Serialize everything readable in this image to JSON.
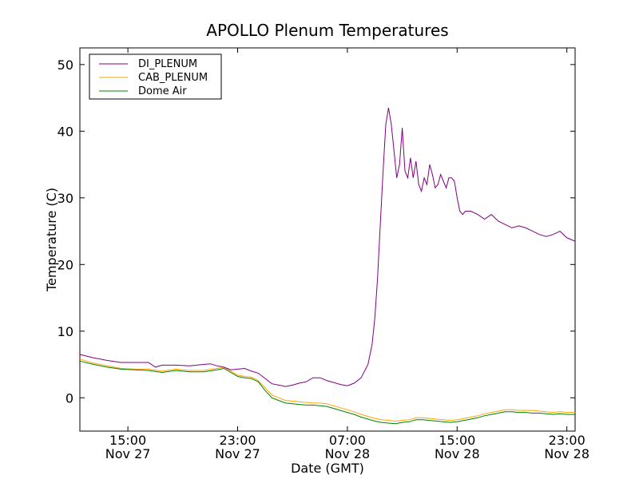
{
  "chart_data": {
    "type": "line",
    "title": "APOLLO Plenum Temperatures",
    "xlabel": "Date (GMT)",
    "ylabel": "Temperature (C)",
    "xlim": [
      11.5,
      47.6
    ],
    "ylim": [
      -5,
      52.5
    ],
    "x_units": "hours since Nov 27 00:00 GMT",
    "x_ticks": [
      {
        "value": 15,
        "line1": "15:00",
        "line2": "Nov 27"
      },
      {
        "value": 23,
        "line1": "23:00",
        "line2": "Nov 27"
      },
      {
        "value": 31,
        "line1": "07:00",
        "line2": "Nov 28"
      },
      {
        "value": 39,
        "line1": "15:00",
        "line2": "Nov 28"
      },
      {
        "value": 47,
        "line1": "23:00",
        "line2": "Nov 28"
      }
    ],
    "y_ticks": [
      0,
      10,
      20,
      30,
      40,
      50
    ],
    "grid": false,
    "legend_position": "top-left",
    "series": [
      {
        "name": "DI_PLENUM",
        "color": "#800080",
        "x": [
          11.5,
          12.5,
          13.5,
          14.5,
          15.5,
          16.5,
          17.0,
          17.5,
          18.5,
          19.5,
          20.5,
          21.0,
          21.5,
          22.0,
          22.5,
          23.0,
          23.5,
          24.0,
          24.5,
          25.0,
          25.5,
          26.0,
          26.5,
          27.0,
          27.5,
          28.0,
          28.5,
          29.0,
          29.5,
          30.0,
          30.5,
          31.0,
          31.5,
          32.0,
          32.5,
          32.8,
          33.0,
          33.2,
          33.4,
          33.6,
          33.8,
          34.0,
          34.2,
          34.4,
          34.6,
          34.8,
          35.0,
          35.2,
          35.4,
          35.6,
          35.8,
          36.0,
          36.2,
          36.4,
          36.6,
          36.8,
          37.0,
          37.2,
          37.4,
          37.6,
          37.8,
          38.0,
          38.2,
          38.4,
          38.6,
          38.8,
          39.0,
          39.2,
          39.4,
          39.6,
          40.0,
          40.5,
          41.0,
          41.5,
          42.0,
          42.5,
          43.0,
          43.5,
          44.0,
          44.5,
          45.0,
          45.5,
          46.0,
          46.5,
          47.0,
          47.6
        ],
        "values": [
          6.5,
          6.0,
          5.6,
          5.3,
          5.3,
          5.3,
          4.6,
          4.9,
          4.9,
          4.8,
          5.0,
          5.1,
          4.8,
          4.6,
          4.2,
          4.3,
          4.4,
          4.0,
          3.7,
          2.9,
          2.1,
          1.9,
          1.7,
          1.9,
          2.2,
          2.4,
          3.0,
          3.0,
          2.6,
          2.3,
          2.0,
          1.8,
          2.2,
          3.0,
          5.0,
          8.0,
          12.0,
          18.0,
          26.0,
          34.0,
          41.0,
          43.5,
          41.0,
          37.0,
          33.0,
          35.0,
          40.5,
          34.0,
          33.0,
          36.0,
          33.0,
          35.5,
          32.0,
          31.0,
          33.0,
          32.0,
          35.0,
          33.5,
          31.5,
          32.0,
          33.5,
          32.5,
          31.5,
          33.0,
          33.0,
          32.5,
          30.0,
          28.0,
          27.5,
          28.0,
          28.0,
          27.5,
          26.8,
          27.5,
          26.5,
          26.0,
          25.5,
          25.8,
          25.5,
          25.0,
          24.5,
          24.2,
          24.5,
          25.0,
          24.0,
          23.5
        ]
      },
      {
        "name": "CAB_PLENUM",
        "color": "#ffa500",
        "x": [
          11.5,
          12.5,
          13.5,
          14.5,
          15.5,
          16.5,
          17.5,
          18.5,
          19.5,
          20.5,
          21.5,
          22.0,
          23.0,
          23.5,
          24.0,
          24.5,
          25.0,
          25.5,
          26.0,
          26.5,
          27.0,
          27.5,
          28.0,
          28.5,
          29.0,
          29.5,
          30.0,
          30.5,
          31.0,
          31.5,
          32.0,
          32.5,
          33.0,
          33.5,
          34.0,
          34.5,
          35.0,
          35.5,
          36.0,
          36.5,
          37.0,
          37.5,
          38.0,
          38.5,
          39.0,
          39.5,
          40.0,
          40.5,
          41.0,
          41.5,
          42.0,
          42.5,
          43.0,
          43.5,
          44.0,
          44.5,
          45.0,
          45.5,
          46.0,
          46.5,
          47.0,
          47.6
        ],
        "values": [
          5.8,
          5.2,
          4.8,
          4.4,
          4.3,
          4.3,
          4.0,
          4.3,
          4.1,
          4.1,
          4.4,
          4.6,
          3.4,
          3.2,
          3.1,
          2.6,
          1.5,
          0.4,
          0.0,
          -0.4,
          -0.5,
          -0.6,
          -0.7,
          -0.8,
          -0.8,
          -0.9,
          -1.2,
          -1.5,
          -1.8,
          -2.1,
          -2.5,
          -2.8,
          -3.1,
          -3.3,
          -3.4,
          -3.5,
          -3.4,
          -3.3,
          -3.0,
          -3.0,
          -3.1,
          -3.2,
          -3.3,
          -3.4,
          -3.3,
          -3.1,
          -2.9,
          -2.7,
          -2.4,
          -2.2,
          -2.0,
          -1.8,
          -1.8,
          -1.9,
          -1.9,
          -1.9,
          -2.0,
          -2.1,
          -2.2,
          -2.1,
          -2.2,
          -2.2
        ]
      },
      {
        "name": "Dome Air",
        "color": "#008000",
        "x": [
          11.5,
          12.5,
          13.5,
          14.5,
          15.5,
          16.5,
          17.5,
          18.5,
          19.5,
          20.5,
          21.5,
          22.0,
          23.0,
          23.5,
          24.0,
          24.5,
          25.0,
          25.5,
          26.0,
          26.5,
          27.0,
          27.5,
          28.0,
          28.5,
          29.0,
          29.5,
          30.0,
          30.5,
          31.0,
          31.5,
          32.0,
          32.5,
          33.0,
          33.5,
          34.0,
          34.5,
          35.0,
          35.5,
          36.0,
          36.5,
          37.0,
          37.5,
          38.0,
          38.5,
          39.0,
          39.5,
          40.0,
          40.5,
          41.0,
          41.5,
          42.0,
          42.5,
          43.0,
          43.5,
          44.0,
          44.5,
          45.0,
          45.5,
          46.0,
          46.5,
          47.0,
          47.6
        ],
        "values": [
          5.5,
          5.0,
          4.6,
          4.3,
          4.2,
          4.1,
          3.8,
          4.1,
          3.9,
          3.9,
          4.2,
          4.4,
          3.2,
          3.0,
          2.9,
          2.4,
          1.1,
          0.0,
          -0.4,
          -0.8,
          -0.9,
          -1.0,
          -1.1,
          -1.1,
          -1.2,
          -1.3,
          -1.6,
          -1.9,
          -2.2,
          -2.5,
          -2.9,
          -3.2,
          -3.5,
          -3.7,
          -3.8,
          -3.9,
          -3.7,
          -3.6,
          -3.3,
          -3.3,
          -3.4,
          -3.5,
          -3.6,
          -3.7,
          -3.6,
          -3.4,
          -3.2,
          -3.0,
          -2.7,
          -2.5,
          -2.3,
          -2.1,
          -2.1,
          -2.2,
          -2.2,
          -2.3,
          -2.3,
          -2.4,
          -2.5,
          -2.4,
          -2.5,
          -2.5
        ]
      }
    ]
  }
}
